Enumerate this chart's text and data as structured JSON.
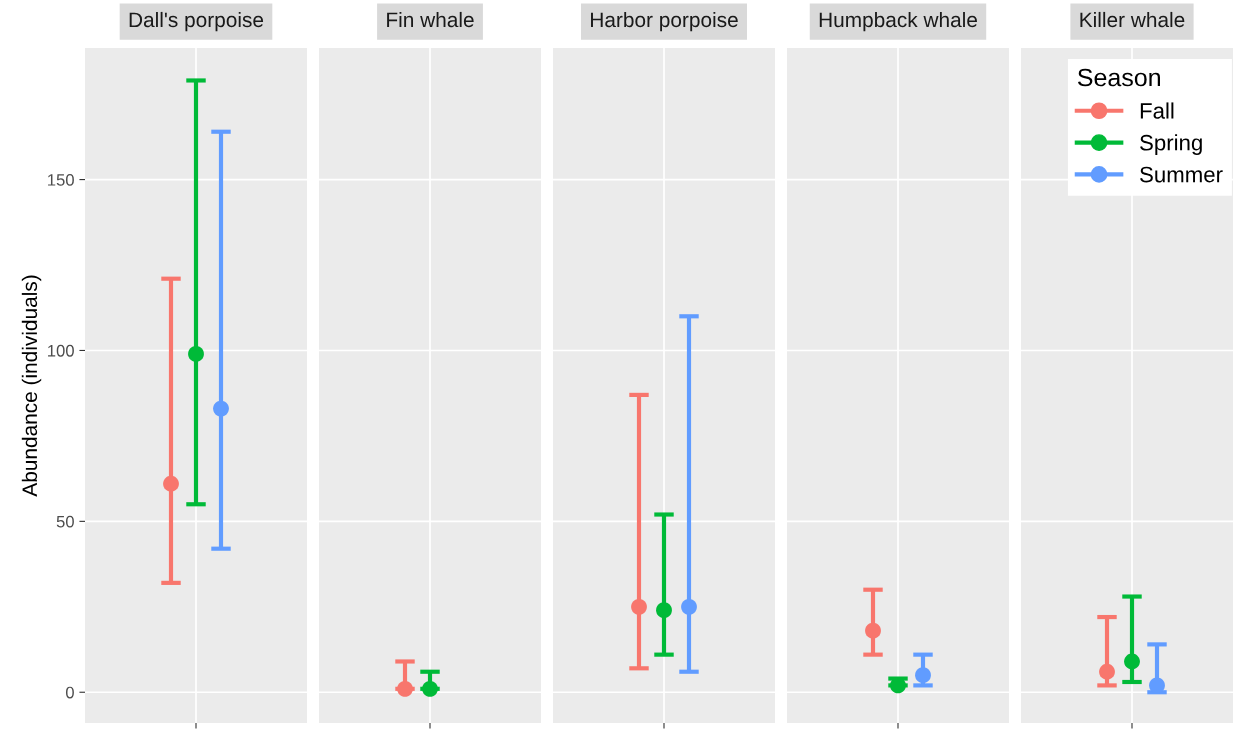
{
  "chart_data": {
    "type": "scatter",
    "ylabel": "Abundance (individuals)",
    "categories": [
      "Dall's porpoise",
      "Fin whale",
      "Harbor porpoise",
      "Humpback whale",
      "Killer whale"
    ],
    "ylim": [
      -9,
      188.5
    ],
    "yticks": [
      0,
      50,
      100,
      150
    ],
    "grid": true,
    "marker": "circle",
    "legend": "top right",
    "legend_title": "Season",
    "series": [
      {
        "name": "Fall",
        "color": "#f8766d",
        "values": [
          61,
          1,
          25,
          18,
          6
        ],
        "errors": [
          [
            32,
            121
          ],
          [
            1,
            9
          ],
          [
            7,
            87
          ],
          [
            11,
            30
          ],
          [
            2,
            22
          ]
        ]
      },
      {
        "name": "Spring",
        "color": "#00ba38",
        "values": [
          99,
          1,
          24,
          2,
          9
        ],
        "errors": [
          [
            55,
            179
          ],
          [
            1,
            6
          ],
          [
            11,
            52
          ],
          [
            2,
            4
          ],
          [
            3,
            28
          ]
        ]
      },
      {
        "name": "Summer",
        "color": "#619cff",
        "values": [
          83,
          null,
          25,
          5,
          2
        ],
        "errors": [
          [
            42,
            164
          ],
          null,
          [
            6,
            110
          ],
          [
            2,
            11
          ],
          [
            0,
            14
          ]
        ]
      }
    ]
  }
}
